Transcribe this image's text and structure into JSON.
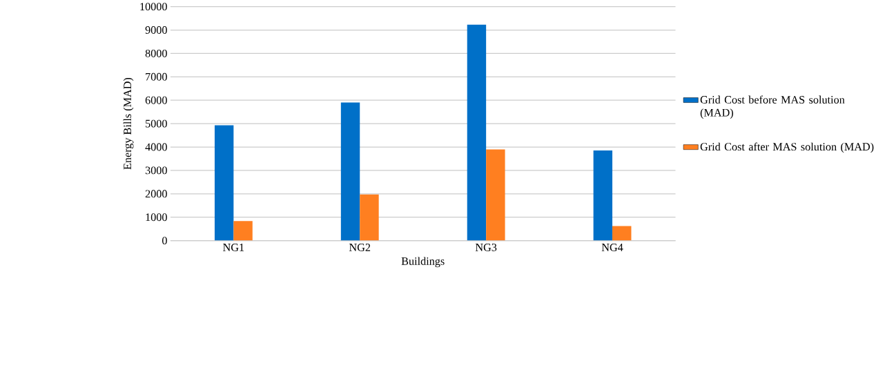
{
  "chart_data": {
    "type": "bar",
    "xlabel": "Buildings",
    "ylabel": "Energy Bills (MAD)",
    "categories": [
      "NG1",
      "NG2",
      "NG3",
      "NG4"
    ],
    "series": [
      {
        "name": "Grid Cost before MAS solution (MAD)",
        "color": "#0070c8",
        "values": [
          4930,
          5900,
          9230,
          3850
        ]
      },
      {
        "name": "Grid Cost after MAS solution (MAD)",
        "color": "#ff7f20",
        "values": [
          840,
          1970,
          3900,
          620
        ]
      }
    ],
    "ylim": [
      0,
      10000
    ],
    "yticks": [
      0,
      1000,
      2000,
      3000,
      4000,
      5000,
      6000,
      7000,
      8000,
      9000,
      10000
    ],
    "grid": "y",
    "legend": "right"
  }
}
